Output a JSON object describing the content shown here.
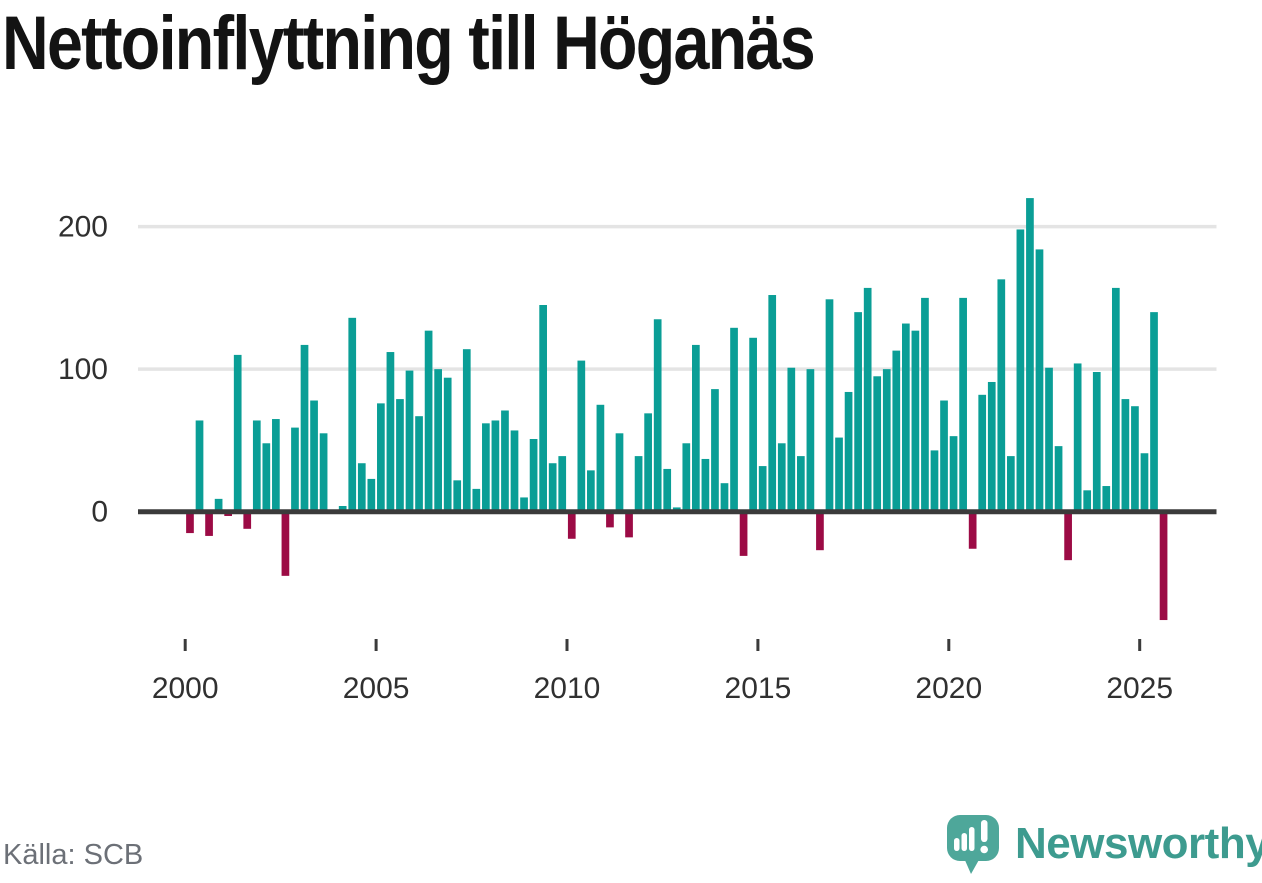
{
  "chart_data": {
    "type": "bar",
    "title": "Nettoinflyttning till Höganäs",
    "frequency": "quarterly",
    "start_year": 2000,
    "start_quarter": 1,
    "values": [
      -15,
      64,
      -17,
      9,
      -3,
      110,
      -12,
      64,
      48,
      65,
      -45,
      59,
      117,
      78,
      55,
      0,
      4,
      136,
      34,
      23,
      76,
      112,
      79,
      99,
      67,
      127,
      100,
      94,
      22,
      114,
      16,
      62,
      64,
      71,
      57,
      10,
      51,
      145,
      34,
      39,
      -19,
      106,
      29,
      75,
      -11,
      55,
      -18,
      39,
      69,
      135,
      30,
      3,
      48,
      117,
      37,
      86,
      20,
      129,
      -31,
      122,
      32,
      152,
      48,
      101,
      39,
      100,
      -27,
      149,
      52,
      84,
      140,
      157,
      95,
      100,
      113,
      132,
      127,
      150,
      43,
      78,
      53,
      150,
      -26,
      82,
      91,
      163,
      39,
      198,
      220,
      184,
      101,
      46,
      -34,
      104,
      15,
      98,
      18,
      157,
      79,
      74,
      41,
      140,
      -76
    ],
    "x_tick_labels": [
      "2000",
      "2005",
      "2010",
      "2015",
      "2020",
      "2025"
    ],
    "y_tick_values": [
      0,
      100,
      200
    ],
    "ylim": [
      -90,
      235
    ],
    "grid": "horizontal-only",
    "legend": "none",
    "colors": {
      "positive": "#0a9e96",
      "negative": "#9c0b45",
      "axis": "#3b3b3b",
      "gridline": "#e4e4e4",
      "tick_label": "#303030"
    }
  },
  "footer": {
    "source": "Källa: SCB"
  },
  "branding": {
    "wordmark": "Newsworthy",
    "wordmark_color": "#3d9b8f",
    "icon": "newsworthy-speech-bubble-bar-chart-icon",
    "icon_color": "#4ea79a"
  }
}
